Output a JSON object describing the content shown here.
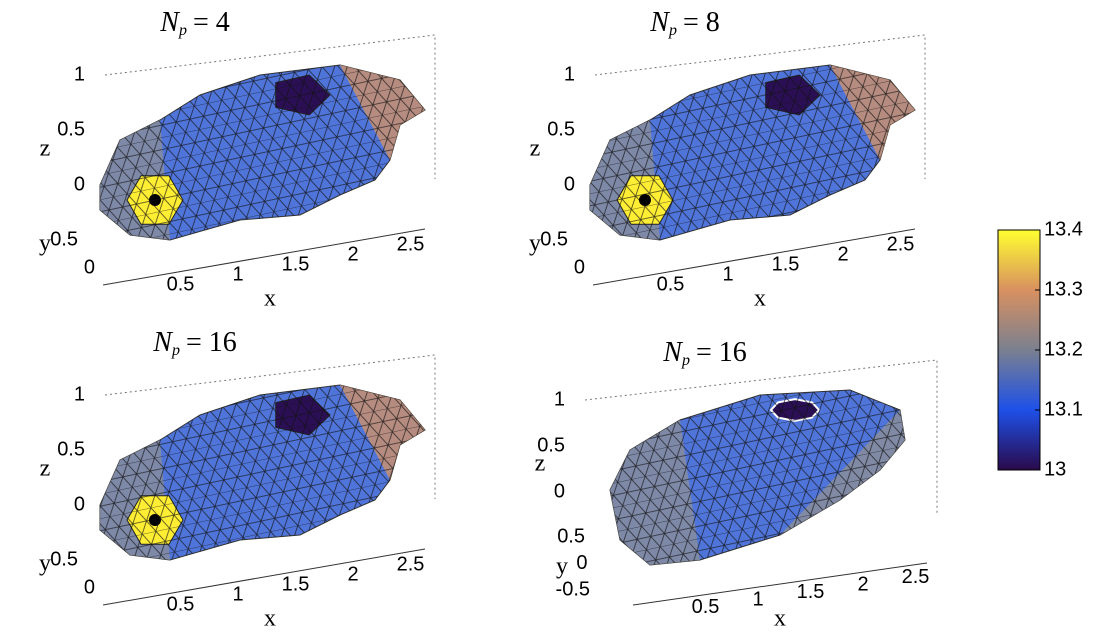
{
  "chart_data": [
    {
      "type": "surface3d",
      "title": [
        "N",
        "p",
        "= 4"
      ],
      "xlabel": "x",
      "ylabel": "y",
      "zlabel": "z",
      "xlim": [
        0,
        2.8
      ],
      "xticks": [
        0.5,
        1,
        1.5,
        2,
        2.5
      ],
      "ylim": [
        0,
        0.5
      ],
      "yticks": [
        0,
        0.5
      ],
      "zlim": [
        0,
        1
      ],
      "zticks": [
        0,
        0.5,
        1
      ]
    },
    {
      "type": "surface3d",
      "title": [
        "N",
        "p",
        "= 8"
      ],
      "xlabel": "x",
      "ylabel": "y",
      "zlabel": "z",
      "xlim": [
        0,
        2.8
      ],
      "xticks": [
        0.5,
        1,
        1.5,
        2,
        2.5
      ],
      "ylim": [
        0,
        0.5
      ],
      "yticks": [
        0,
        0.5
      ],
      "zlim": [
        0,
        1
      ],
      "zticks": [
        0,
        0.5,
        1
      ]
    },
    {
      "type": "surface3d",
      "title": [
        "N",
        "p",
        "= 16"
      ],
      "xlabel": "x",
      "ylabel": "y",
      "zlabel": "z",
      "xlim": [
        0,
        2.8
      ],
      "xticks": [
        0.5,
        1,
        1.5,
        2,
        2.5
      ],
      "ylim": [
        0,
        0.5
      ],
      "yticks": [
        0,
        0.5
      ],
      "zlim": [
        0,
        1
      ],
      "zticks": [
        0,
        0.5,
        1
      ]
    },
    {
      "type": "surface3d",
      "title": [
        "N",
        "p",
        "= 16"
      ],
      "xlabel": "x",
      "ylabel": "y",
      "zlabel": "z",
      "xlim": [
        0,
        2.8
      ],
      "xticks": [
        0.5,
        1,
        1.5,
        2,
        2.5
      ],
      "ylim": [
        -0.5,
        0.5
      ],
      "yticks": [
        -0.5,
        0,
        0.5
      ],
      "zlim": [
        0,
        1
      ],
      "zticks": [
        0,
        0.5,
        1
      ]
    },
    {
      "type": "colorbar",
      "ylim": [
        13,
        13.4
      ],
      "yticks": [
        13,
        13.1,
        13.2,
        13.3,
        13.4
      ],
      "colors": [
        "#2a0a4a",
        "#1e50e8",
        "#7a8090",
        "#d89060",
        "#ffff30"
      ]
    }
  ]
}
